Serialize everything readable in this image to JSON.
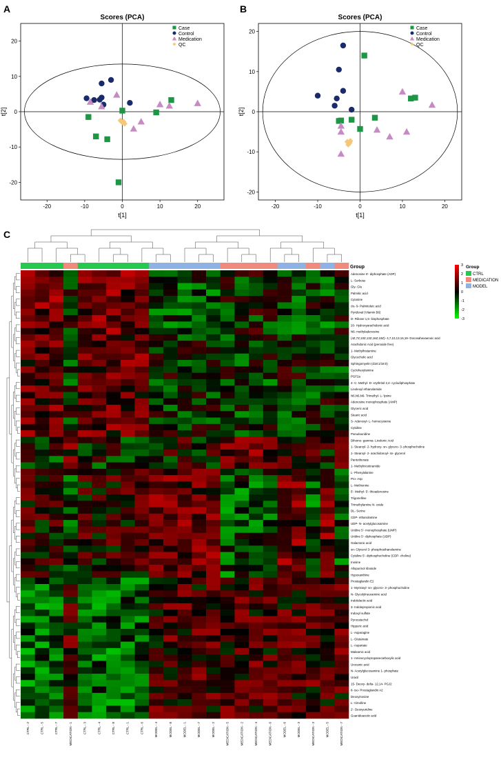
{
  "chart_data": [
    {
      "panel": "A",
      "type": "scatter",
      "title": "Scores (PCA)",
      "xlabel": "t[1]",
      "ylabel": "t[2]",
      "xlim": [
        -27,
        27
      ],
      "ylim": [
        -25,
        25
      ],
      "xticks": [
        -20,
        -10,
        0,
        10,
        20
      ],
      "yticks": [
        -20,
        -10,
        0,
        10,
        20
      ],
      "legend": "top-right",
      "ellipse": {
        "rx": 26,
        "ry": 13.5
      },
      "series": [
        {
          "name": "Case",
          "marker": "square",
          "color": "#1e9646",
          "points": [
            [
              -9,
              -1.5
            ],
            [
              -7,
              -7
            ],
            [
              -4,
              -7.8
            ],
            [
              0,
              0.3
            ],
            [
              -1,
              -20
            ],
            [
              9,
              -0.2
            ],
            [
              13,
              3.3
            ]
          ]
        },
        {
          "name": "Control",
          "marker": "circle",
          "color": "#1b2a6b",
          "points": [
            [
              -9.5,
              3.8
            ],
            [
              -7.5,
              3.3
            ],
            [
              -6,
              3.4
            ],
            [
              -5.5,
              8
            ],
            [
              -5,
              2
            ],
            [
              -3,
              9
            ],
            [
              2,
              2.5
            ],
            [
              -5.5,
              4
            ]
          ]
        },
        {
          "name": "Medication",
          "marker": "triangle",
          "color": "#c78bc4",
          "points": [
            [
              -8.5,
              2.8
            ],
            [
              -5.5,
              1.5
            ],
            [
              -1.5,
              4.8
            ],
            [
              3,
              -4.8
            ],
            [
              5,
              -2.8
            ],
            [
              10,
              2.1
            ],
            [
              12.5,
              1.7
            ],
            [
              20,
              2.4
            ]
          ]
        },
        {
          "name": "QC",
          "marker": "diamond",
          "color": "#f5c77b",
          "points": [
            [
              -0.5,
              -2.5
            ],
            [
              0,
              -3
            ],
            [
              0.3,
              -2.8
            ],
            [
              0.6,
              -3.4
            ]
          ]
        }
      ]
    },
    {
      "panel": "B",
      "type": "scatter",
      "title": "Scores (PCA)",
      "xlabel": "t[1]",
      "ylabel": "t[2]",
      "xlim": [
        -24,
        24
      ],
      "ylim": [
        -22,
        22
      ],
      "xticks": [
        -20,
        -10,
        0,
        10,
        20
      ],
      "yticks": [
        -20,
        -10,
        0,
        10,
        20
      ],
      "legend": "top-right",
      "ellipse": {
        "rx": 23,
        "ry": 20
      },
      "series": [
        {
          "name": "Case",
          "marker": "square",
          "color": "#1e9646",
          "points": [
            [
              1,
              14
            ],
            [
              -5,
              -2.3
            ],
            [
              -4.5,
              -2.2
            ],
            [
              -2,
              -2
            ],
            [
              0,
              -4.3
            ],
            [
              3.5,
              -1.5
            ],
            [
              12,
              3.3
            ],
            [
              13,
              3.5
            ]
          ]
        },
        {
          "name": "Control",
          "marker": "circle",
          "color": "#1b2a6b",
          "points": [
            [
              -4,
              16.5
            ],
            [
              -5,
              10.5
            ],
            [
              -10,
              4
            ],
            [
              -5.5,
              3.3
            ],
            [
              -4,
              5.2
            ],
            [
              -6,
              1.5
            ],
            [
              -2,
              0.5
            ]
          ]
        },
        {
          "name": "Medication",
          "marker": "triangle",
          "color": "#c78bc4",
          "points": [
            [
              -4.5,
              -3.5
            ],
            [
              -4.5,
              -5
            ],
            [
              -4.5,
              -10.5
            ],
            [
              4,
              -4.5
            ],
            [
              7,
              -6.2
            ],
            [
              10,
              5
            ],
            [
              11,
              -5
            ],
            [
              17,
              1.7
            ]
          ]
        },
        {
          "name": "QC",
          "marker": "diamond",
          "color": "#f5c77b",
          "points": [
            [
              -3,
              -7.5
            ],
            [
              -2.5,
              -7.8
            ],
            [
              -2.3,
              -7.3
            ],
            [
              -2.8,
              -8.2
            ]
          ]
        }
      ]
    },
    {
      "panel": "C",
      "type": "heatmap",
      "legend_title": "Group",
      "legend": [
        {
          "name": "CTRL",
          "color": "#26c94f"
        },
        {
          "name": "MEDICATION",
          "color": "#f08a7d"
        },
        {
          "name": "MODEL",
          "color": "#8db2e3"
        }
      ],
      "color_scale": {
        "min": -3,
        "max": 3,
        "ticks": [
          3,
          2,
          1,
          0,
          -1,
          -2,
          -3
        ],
        "low": "#00ff00",
        "mid": "#000000",
        "high": "#ff0000"
      },
      "columns": [
        "CTRL - 2",
        "CTRL - 5",
        "CTRL - 7",
        "MEDICATION - 1",
        "CTRL - 3",
        "CTRL - 4",
        "CTRL - 8",
        "CTRL - 1",
        "CTRL - 6",
        "MODEL - 4",
        "MODEL - 8",
        "MODEL - 1",
        "MODEL - 7",
        "MODEL - 2",
        "MEDICATION - 5",
        "MEDICATION - 2",
        "MEDICATION - 4",
        "MEDICATION - 6",
        "MODEL - 6",
        "MODEL - 3",
        "MEDICATION - 3",
        "MODEL - 5",
        "MEDICATION - 7"
      ],
      "column_groups": [
        "CTRL",
        "CTRL",
        "CTRL",
        "MEDICATION",
        "CTRL",
        "CTRL",
        "CTRL",
        "CTRL",
        "CTRL",
        "MODEL",
        "MODEL",
        "MODEL",
        "MODEL",
        "MODEL",
        "MEDICATION",
        "MEDICATION",
        "MEDICATION",
        "MEDICATION",
        "MODEL",
        "MODEL",
        "MEDICATION",
        "MODEL",
        "MEDICATION"
      ],
      "rows": [
        "Adenosine 5'- diphosphate (ADP)",
        "L- Sorbose",
        "Gly- Glu",
        "Palmitic acid",
        "Cytosine",
        "cis- 9- Palmitoleic acid",
        "Pyridoxal (Vitamin B6)",
        "D- Ribose 1,5- bisphosphate",
        "20- Hydroxyarachidonic acid",
        "N6- methyladenosine",
        "(4Z,7Z,10Z,13Z,16Z,19Z)- 4,7,10,13,16,19- Docosahexaenoic acid",
        "Arachidonic Acid (peroxide free)",
        "1- Methylhistamine",
        "Glycocholic acid",
        "Sphingomyelin (d18:1/18:0)",
        "Cyclohexylamine",
        "PGF2a",
        "2- C- Methyl- D- erythritol 2,4- cyclodiphosphate",
        "Linoleoyl ethanolamide",
        "N6,N6,N6- Trimethyl- L- lysine",
        "Adenosine monophosphate (AMP)",
        "Glyceric acid",
        "Stearic acid",
        "S- Adenosyl- L- homocysteine",
        "Cytidine",
        "Pseudouridine",
        "Dihomo- gamma- Linolenic Acid",
        "1- Stearoyl- 2- hydroxy- sn- glycero- 3- phosphocholine",
        "1- Stearoyl- 2- arachidonoyl- sn- glycerol",
        "Pantothenate",
        "1- Methylnicotinamide",
        "L- Phenylalanine",
        "Pro- Asp",
        "L- Methionine",
        "5'- Methyl- 5'- thioadenosine",
        "Trigonelline",
        "Trimethylamine N- oxide",
        "DL- Serine",
        "CDP- ethanolamine",
        "UDP- N- acetylglucosamine",
        "Uridine 5'- monophosphate (UMP)",
        "Uridine 5'- diphosphate (UDP)",
        "Galactonic acid",
        "sn- Glycerol 3- phosphoethanolamine",
        "Cytidine 5'- diphosphocholine (CDP- choline)",
        "Inosine",
        "Allopurinol riboside",
        "Hypoxanthine",
        "Prostaglandin E2",
        "1- Myristoyl- sn- glycero- 3- phosphocholine",
        "N- Glycolylneuraminic acid",
        "Indolelactic acid",
        "3- Indolepropionic acid",
        "Indoxyl sulfate",
        "Pyrocatechol",
        "Hippuric acid",
        "L- Asparagine",
        "L- Glutamate",
        "L- Aspartate",
        "Maleamic acid",
        "1- Aminocyclopropanecarboxylic acid",
        "Urocanic acid",
        "N- Acetylglucosamine 1- phosphate",
        "Uracil",
        "15- Deoxy- delta- 12,14- PGJ2",
        "8- iso- Prostaglandin A2",
        "Deoxyinosine",
        "L- Citrulline",
        "2'- Deoxyuridine",
        "Guanidoacetic acid"
      ],
      "row_profiles": [
        {
          "rows": [
            0,
            10
          ],
          "group_means": {
            "CTRL": 1.1,
            "MODEL": -0.7,
            "MEDICATION": -0.2
          }
        },
        {
          "rows": [
            10,
            26
          ],
          "group_means": {
            "CTRL": 0.9,
            "MODEL": -0.3,
            "MEDICATION": -0.5
          }
        },
        {
          "rows": [
            26,
            31
          ],
          "group_means": {
            "CTRL": -0.4,
            "MODEL": 0.1,
            "MEDICATION": 0.9
          }
        },
        {
          "rows": [
            31,
            48
          ],
          "group_means": {
            "CTRL": 0.3,
            "MODEL": 1.0,
            "MEDICATION": -0.8
          }
        },
        {
          "rows": [
            48,
            70
          ],
          "group_means": {
            "CTRL": -1.0,
            "MODEL": 0.6,
            "MEDICATION": 0.6
          }
        }
      ]
    }
  ],
  "panels": {
    "a": "A",
    "b": "B",
    "c": "C"
  }
}
